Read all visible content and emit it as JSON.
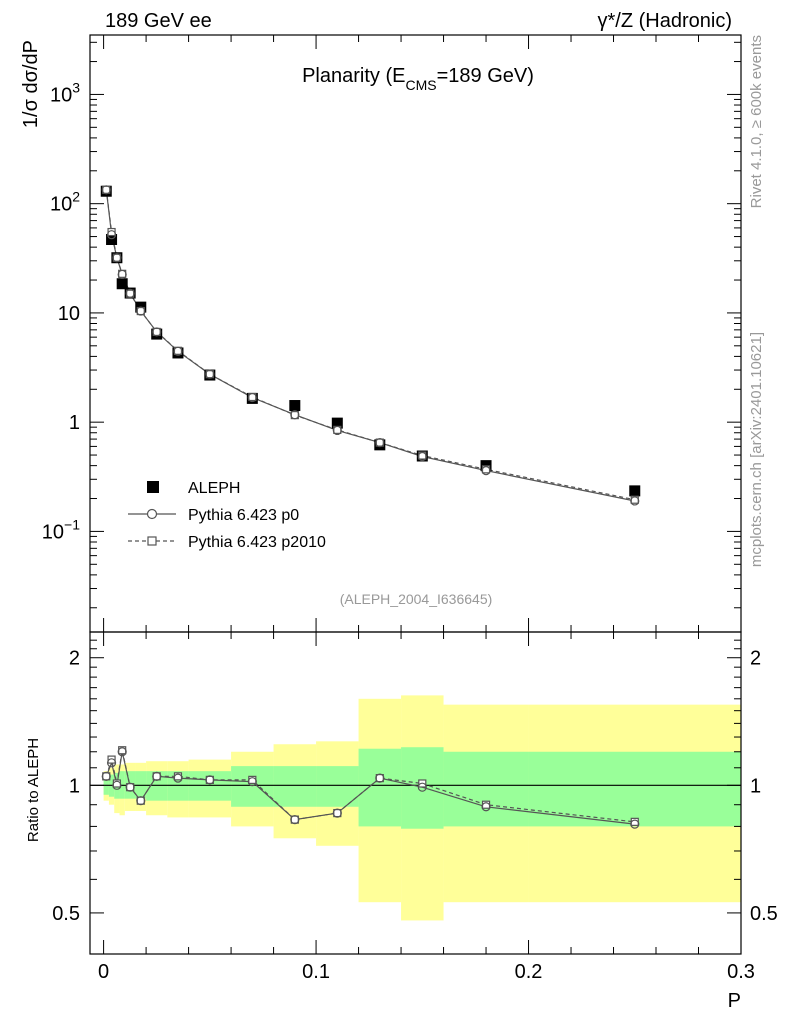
{
  "header": {
    "left": "189 GeV ee",
    "right": "γ*/Z (Hadronic)"
  },
  "side_labels": {
    "top": "Rivet 4.1.0, ≥ 600k events",
    "bottom": "mcplots.cern.ch [arXiv:2401.10621]"
  },
  "colors": {
    "green_band": "#99ff99",
    "yellow_band": "#ffff99",
    "line": "#555555",
    "data": "#000000"
  },
  "chart_data": {
    "type": "scatter",
    "title": "Planarity (E_CMS=189 GeV)",
    "title_parts": {
      "pre": "Planarity (E",
      "sub": "CMS",
      "post": "=189 GeV)"
    },
    "watermark": "(ALEPH_2004_I636645)",
    "xlabel": "P",
    "ylabel": "1/σ  dσ/dP",
    "ratio_ylabel": "Ratio to ALEPH",
    "xlim": [
      -0.0064,
      0.3
    ],
    "ylim": [
      0.012,
      3500
    ],
    "ratio_ylim": [
      0.4,
      2.3
    ],
    "x_ticks": [
      {
        "v": 0,
        "label": "0"
      },
      {
        "v": 0.1,
        "label": "0.1"
      },
      {
        "v": 0.2,
        "label": "0.2"
      },
      {
        "v": 0.3,
        "label": "0.3"
      }
    ],
    "y_ticks": [
      {
        "v": 0.1,
        "base": "10",
        "exp": "−1"
      },
      {
        "v": 1,
        "base": "1",
        "exp": ""
      },
      {
        "v": 10,
        "base": "10",
        "exp": ""
      },
      {
        "v": 100,
        "base": "10",
        "exp": "2"
      },
      {
        "v": 1000,
        "base": "10",
        "exp": "3"
      }
    ],
    "ratio_ticks": [
      {
        "v": 0.5,
        "label": "0.5"
      },
      {
        "v": 1,
        "label": "1"
      },
      {
        "v": 2,
        "label": "2"
      }
    ],
    "bins": [
      {
        "lo": 0.0,
        "hi": 0.0025,
        "x": 0.00125
      },
      {
        "lo": 0.0025,
        "hi": 0.005,
        "x": 0.00375
      },
      {
        "lo": 0.005,
        "hi": 0.0075,
        "x": 0.00625
      },
      {
        "lo": 0.0075,
        "hi": 0.01,
        "x": 0.00875
      },
      {
        "lo": 0.01,
        "hi": 0.015,
        "x": 0.0125
      },
      {
        "lo": 0.015,
        "hi": 0.02,
        "x": 0.0175
      },
      {
        "lo": 0.02,
        "hi": 0.03,
        "x": 0.025
      },
      {
        "lo": 0.03,
        "hi": 0.04,
        "x": 0.035
      },
      {
        "lo": 0.04,
        "hi": 0.06,
        "x": 0.05
      },
      {
        "lo": 0.06,
        "hi": 0.08,
        "x": 0.07
      },
      {
        "lo": 0.08,
        "hi": 0.1,
        "x": 0.09
      },
      {
        "lo": 0.1,
        "hi": 0.12,
        "x": 0.11
      },
      {
        "lo": 0.12,
        "hi": 0.14,
        "x": 0.13
      },
      {
        "lo": 0.14,
        "hi": 0.16,
        "x": 0.15
      },
      {
        "lo": 0.16,
        "hi": 0.2,
        "x": 0.18
      },
      {
        "lo": 0.2,
        "hi": 0.3,
        "x": 0.25
      }
    ],
    "series": [
      {
        "name": "ALEPH",
        "marker": "filled-square",
        "values": [
          130,
          47,
          32,
          18.5,
          15.2,
          11.3,
          6.4,
          4.3,
          2.7,
          1.65,
          1.42,
          0.98,
          0.62,
          0.49,
          0.4,
          0.235
        ]
      },
      {
        "name": "Pythia 6.423 p0",
        "marker": "open-circle",
        "line": "solid",
        "values": [
          134,
          52,
          32,
          22.5,
          15.1,
          10.4,
          6.7,
          4.45,
          2.75,
          1.68,
          1.17,
          0.84,
          0.65,
          0.485,
          0.36,
          0.19
        ]
      },
      {
        "name": "Pythia 6.423 p2010",
        "marker": "open-square",
        "line": "dashed",
        "values": [
          134,
          55,
          32,
          22.8,
          15.0,
          10.4,
          6.7,
          4.5,
          2.75,
          1.7,
          1.16,
          0.85,
          0.65,
          0.495,
          0.37,
          0.195
        ]
      }
    ],
    "ratio": {
      "p0": [
        1.05,
        1.13,
        1.0,
        1.2,
        0.99,
        0.92,
        1.05,
        1.04,
        1.03,
        1.02,
        0.83,
        0.86,
        1.04,
        0.99,
        0.89,
        0.81
      ],
      "p2010": [
        1.05,
        1.15,
        1.01,
        1.21,
        0.99,
        0.92,
        1.05,
        1.05,
        1.03,
        1.03,
        0.83,
        0.86,
        1.04,
        1.01,
        0.9,
        0.82
      ],
      "green": [
        [
          0.95,
          1.05
        ],
        [
          0.94,
          1.06
        ],
        [
          0.93,
          1.07
        ],
        [
          0.93,
          1.08
        ],
        [
          0.93,
          1.08
        ],
        [
          0.93,
          1.08
        ],
        [
          0.92,
          1.08
        ],
        [
          0.92,
          1.08
        ],
        [
          0.92,
          1.08
        ],
        [
          0.89,
          1.11
        ],
        [
          0.89,
          1.11
        ],
        [
          0.89,
          1.11
        ],
        [
          0.8,
          1.22
        ],
        [
          0.79,
          1.23
        ],
        [
          0.8,
          1.2
        ],
        [
          0.8,
          1.2
        ]
      ],
      "yellow": [
        [
          0.92,
          1.08
        ],
        [
          0.9,
          1.1
        ],
        [
          0.86,
          1.12
        ],
        [
          0.85,
          1.12
        ],
        [
          0.87,
          1.13
        ],
        [
          0.87,
          1.13
        ],
        [
          0.85,
          1.14
        ],
        [
          0.84,
          1.14
        ],
        [
          0.84,
          1.15
        ],
        [
          0.8,
          1.2
        ],
        [
          0.75,
          1.25
        ],
        [
          0.72,
          1.27
        ],
        [
          0.53,
          1.6
        ],
        [
          0.48,
          1.63
        ],
        [
          0.53,
          1.55
        ],
        [
          0.53,
          1.55
        ]
      ]
    }
  }
}
